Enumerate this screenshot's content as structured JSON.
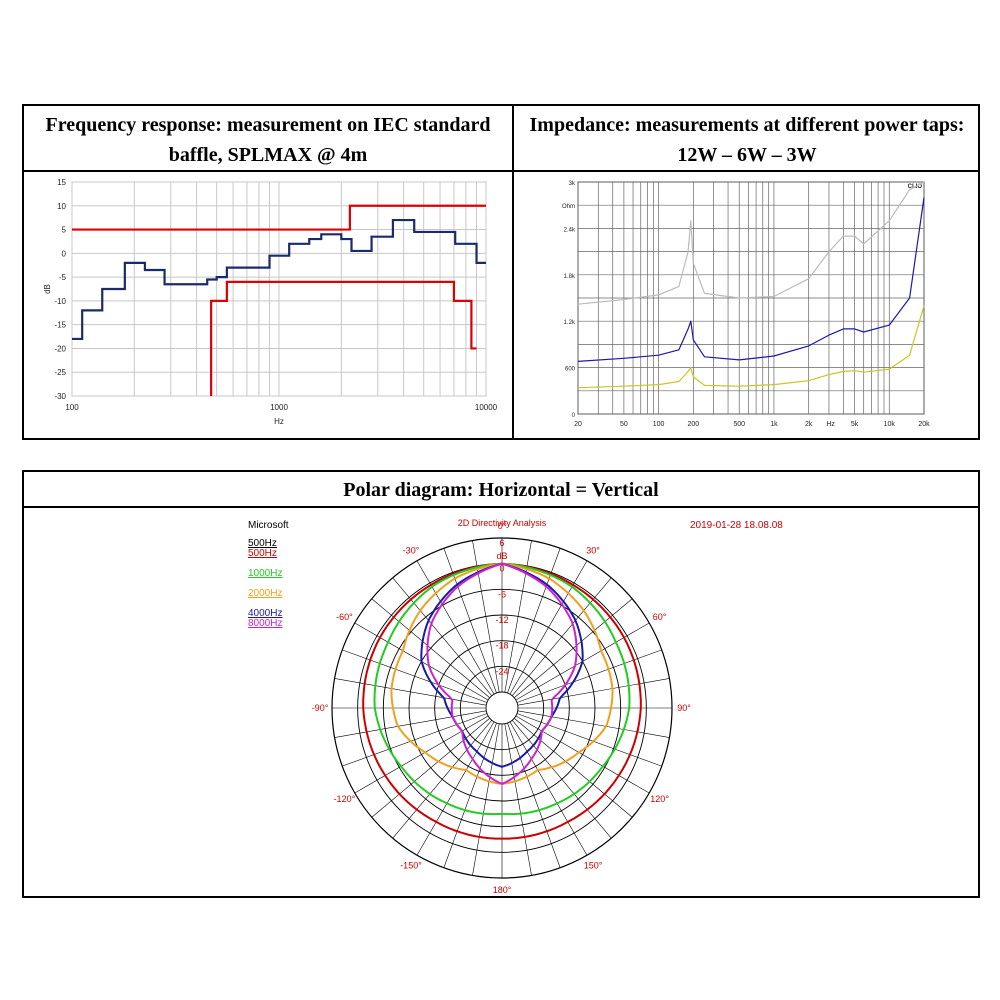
{
  "freq_panel": {
    "title_line1": "Frequency response: measurement on IEC standard",
    "title_line2": "baffle, SPLMAX @ 4m"
  },
  "imp_panel": {
    "title_line1": "Impedance: measurements at different power taps:",
    "title_line2": "12W – 6W – 3W"
  },
  "polar_panel": {
    "title": "Polar diagram: Horizontal = Vertical",
    "brand": "Microsoft",
    "analysis_title": "2D Directivity Analysis",
    "timestamp": "2019-01-28 18.08.08",
    "legend": [
      {
        "label": "500Hz",
        "color": "#000000"
      },
      {
        "label": "500Hz",
        "color": "#cc0000"
      },
      {
        "label": "1000Hz",
        "color": "#22cc22"
      },
      {
        "label": "2000Hz",
        "color": "#f0a020"
      },
      {
        "label": "4000Hz",
        "color": "#1a1aaa"
      },
      {
        "label": "8000Hz",
        "color": "#cc22cc"
      }
    ]
  },
  "chart_data": [
    {
      "type": "line",
      "xscale": "log",
      "xlabel": "Hz",
      "ylabel": "dB",
      "xlim": [
        100,
        10000
      ],
      "ylim": [
        -30,
        15
      ],
      "yticks": [
        "15",
        "10",
        "5",
        "0",
        "-5",
        "-10",
        "-15",
        "-20",
        "-25",
        "-30"
      ],
      "xticks": [
        "100",
        "1000",
        "10000"
      ],
      "grid": true,
      "series": [
        {
          "color": "#1b2a6b",
          "x": [
            100,
            112,
            125,
            140,
            160,
            180,
            200,
            225,
            250,
            280,
            315,
            355,
            400,
            450,
            500,
            560,
            630,
            710,
            800,
            900,
            1000,
            1120,
            1250,
            1400,
            1600,
            1800,
            2000,
            2240,
            2500,
            2800,
            3150,
            3550,
            4000,
            4500,
            5000,
            5600,
            6300,
            7100,
            8000,
            9000,
            10000
          ],
          "y": [
            -18,
            -12,
            -12,
            -7.5,
            -7.5,
            -2,
            -2,
            -3.5,
            -3.5,
            -6.5,
            -6.5,
            -6.5,
            -6.5,
            -5.5,
            -5,
            -3,
            -3,
            -3,
            -3,
            -0.5,
            -0.5,
            2,
            2,
            3,
            4,
            4,
            3,
            0.5,
            0.5,
            3.5,
            3.5,
            7,
            7,
            4.5,
            4.5,
            4.5,
            4.5,
            2,
            2,
            -2,
            -2
          ]
        },
        {
          "color": "#dd0000",
          "x": [
            100,
            2200,
            2200,
            10000
          ],
          "y": [
            5,
            5,
            10,
            10
          ]
        },
        {
          "color": "#dd0000",
          "x": [
            470,
            470,
            560,
            560,
            7000,
            7000,
            8500,
            8500,
            9000
          ],
          "y": [
            -30,
            -10,
            -10,
            -6,
            -6,
            -10,
            -10,
            -20,
            -20
          ]
        }
      ]
    },
    {
      "type": "line",
      "xscale": "log",
      "xlim": [
        20,
        20000
      ],
      "ylim": [
        0,
        3000
      ],
      "ylabel": "Ohm",
      "yticks": [
        "3k",
        "2.4k",
        "1.8k",
        "1.2k",
        "600",
        "0"
      ],
      "xticks": [
        "20",
        "50",
        "100",
        "200",
        "500",
        "1k",
        "2k",
        "Hz",
        "5k",
        "10k",
        "20k"
      ],
      "annotations": [
        "CLIO"
      ],
      "grid": true,
      "series": [
        {
          "color": "#bbbbbb",
          "x": [
            20,
            50,
            100,
            150,
            180,
            190,
            200,
            250,
            500,
            1000,
            2000,
            3000,
            4000,
            5000,
            6000,
            10000,
            15000,
            20000
          ],
          "y": [
            1420,
            1480,
            1540,
            1650,
            2100,
            2500,
            1950,
            1560,
            1500,
            1520,
            1750,
            2100,
            2300,
            2300,
            2200,
            2500,
            2900,
            3000
          ]
        },
        {
          "color": "#1a1aaa",
          "x": [
            20,
            50,
            100,
            150,
            180,
            190,
            200,
            250,
            500,
            1000,
            2000,
            3000,
            4000,
            5000,
            6000,
            10000,
            15000,
            20000
          ],
          "y": [
            680,
            720,
            760,
            830,
            1100,
            1200,
            960,
            740,
            700,
            750,
            880,
            1020,
            1100,
            1100,
            1060,
            1150,
            1500,
            2800
          ]
        },
        {
          "color": "#c8c820",
          "x": [
            20,
            50,
            100,
            150,
            180,
            190,
            200,
            250,
            500,
            1000,
            2000,
            3000,
            4000,
            5000,
            6000,
            10000,
            15000,
            20000
          ],
          "y": [
            340,
            360,
            380,
            420,
            550,
            600,
            480,
            370,
            360,
            380,
            430,
            510,
            550,
            560,
            540,
            580,
            760,
            1400
          ]
        }
      ]
    },
    {
      "type": "polar",
      "title": "2D Directivity Analysis",
      "radial_labels": [
        "6",
        "dB",
        "0",
        "-6",
        "-12",
        "-18",
        "-24"
      ],
      "angle_labels": [
        "0°",
        "30°",
        "60°",
        "90°",
        "120°",
        "150°",
        "180°",
        "-150°",
        "-120°",
        "-90°",
        "-60°",
        "-30°"
      ],
      "series": [
        {
          "name": "500Hz",
          "color": "#cc0000",
          "angles": [
            0,
            30,
            60,
            90,
            120,
            150,
            180
          ],
          "db": [
            0,
            -0.5,
            -0.8,
            -1.3,
            -2.2,
            -3,
            -3.2
          ]
        },
        {
          "name": "1000Hz",
          "color": "#22cc22",
          "angles": [
            0,
            30,
            60,
            90,
            120,
            150,
            180
          ],
          "db": [
            0,
            -1,
            -3,
            -4,
            -6.5,
            -8,
            -9
          ]
        },
        {
          "name": "2000Hz",
          "color": "#f0a020",
          "angles": [
            0,
            20,
            40,
            60,
            80,
            100,
            120,
            150,
            180
          ],
          "db": [
            0,
            -1.5,
            -4,
            -7,
            -7.5,
            -9,
            -13,
            -17,
            -16
          ]
        },
        {
          "name": "4000Hz",
          "color": "#1a1aaa",
          "angles": [
            0,
            20,
            40,
            60,
            80,
            100,
            120,
            150,
            180
          ],
          "db": [
            0,
            -3,
            -7,
            -12,
            -20,
            -22,
            -23,
            -22,
            -20
          ]
        },
        {
          "name": "8000Hz",
          "color": "#cc22cc",
          "angles": [
            0,
            20,
            40,
            60,
            80,
            100,
            120,
            150,
            180
          ],
          "db": [
            0,
            -3.5,
            -8,
            -14,
            -22,
            -22,
            -23,
            -20,
            -16
          ]
        }
      ]
    }
  ]
}
